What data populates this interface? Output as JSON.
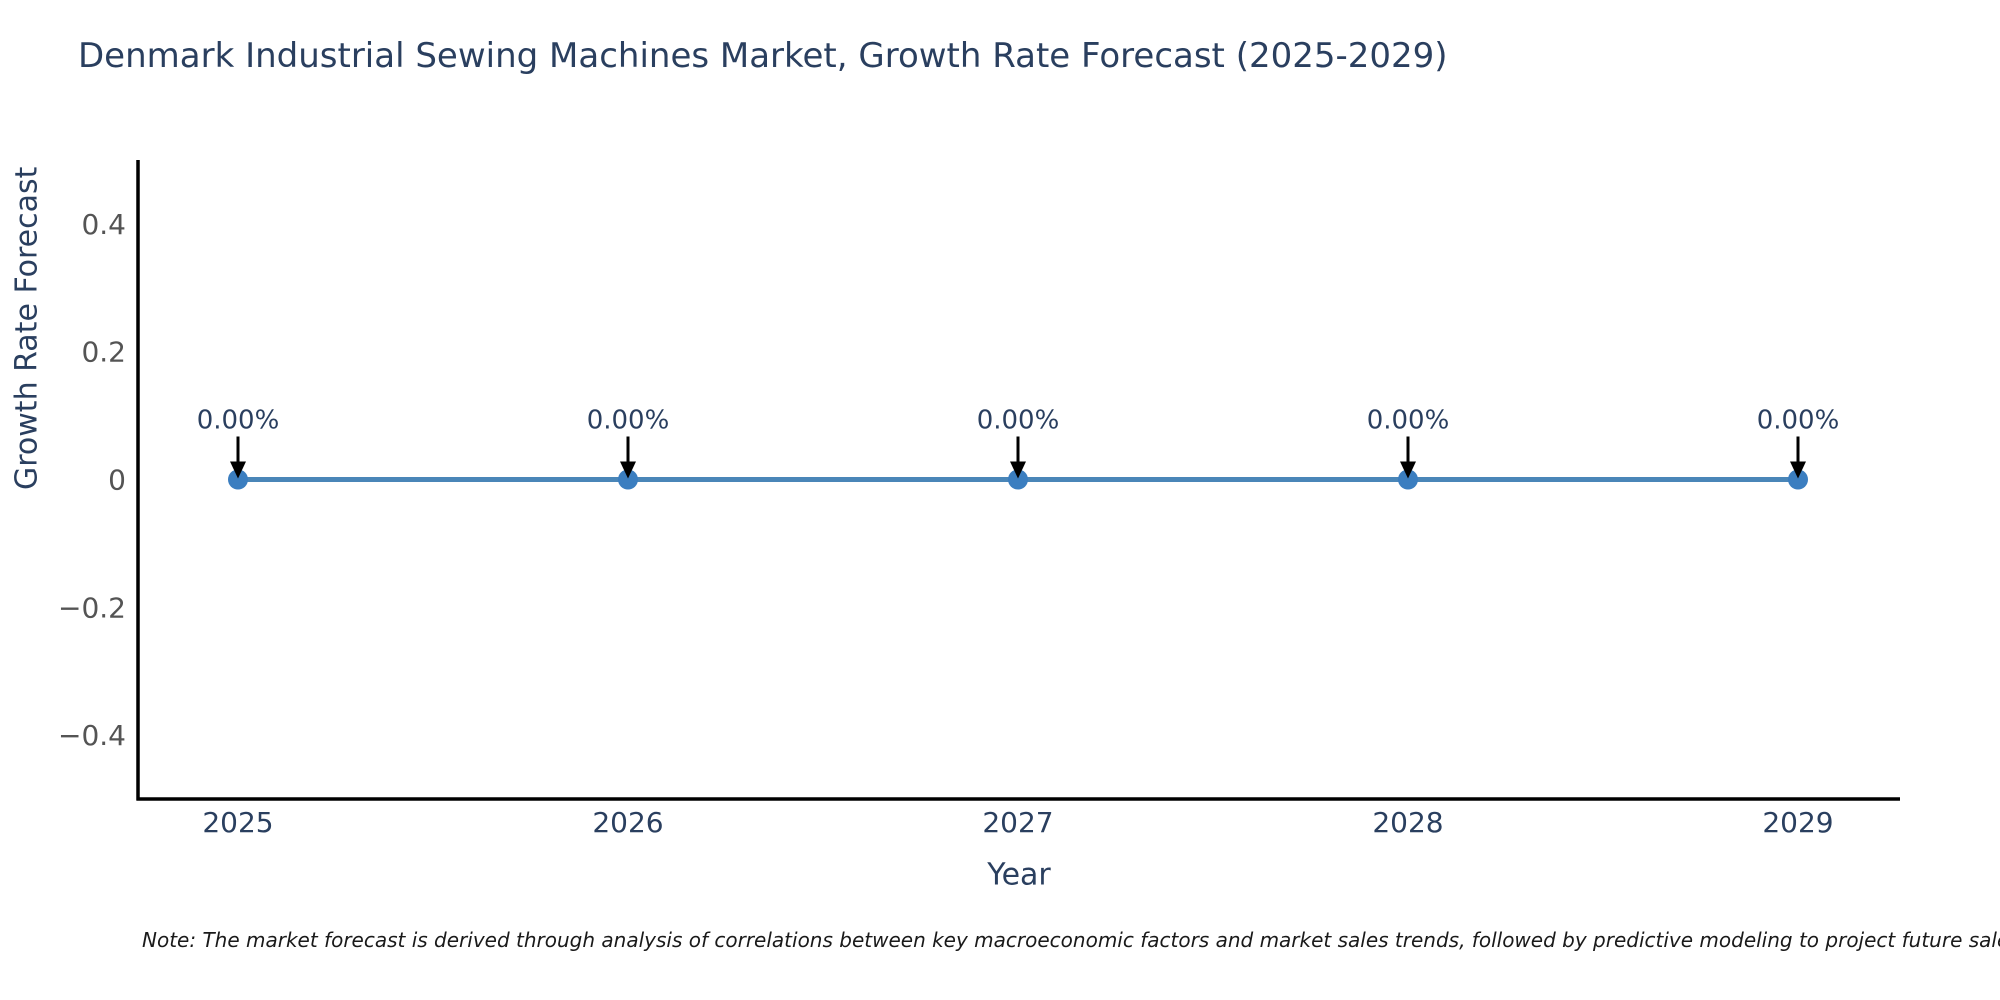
{
  "note": "Note: The market forecast is derived through analysis of correlations between key macroeconomic factors and market sales trends, followed by predictive modeling to project future sales.",
  "chart_data": {
    "type": "line",
    "title": "Denmark Industrial Sewing Machines Market, Growth Rate Forecast (2025-2029)",
    "xlabel": "Year",
    "ylabel": "Growth Rate Forecast",
    "categories": [
      "2025",
      "2026",
      "2027",
      "2028",
      "2029"
    ],
    "values": [
      0,
      0,
      0,
      0,
      0
    ],
    "point_labels": [
      "0.00%",
      "0.00%",
      "0.00%",
      "0.00%",
      "0.00%"
    ],
    "ylim": [
      -0.5,
      0.5
    ],
    "yticks": [
      0.4,
      0.2,
      0,
      -0.2,
      -0.4
    ],
    "ytick_labels": [
      "0.4",
      "0.2",
      "0",
      "−0.2",
      "−0.4"
    ],
    "grid": "off",
    "legend": "none",
    "colors": {
      "line": "#4a86b8",
      "marker": "#3b7ec0",
      "axis_line": "#000000",
      "arrow": "#000000",
      "title_text": "#2a3f5f",
      "x_tick_text": "#2a3f5f",
      "y_tick_text": "#545454",
      "annotation_text": "#2a3f5f",
      "note_text": "#1a1a1a"
    }
  }
}
